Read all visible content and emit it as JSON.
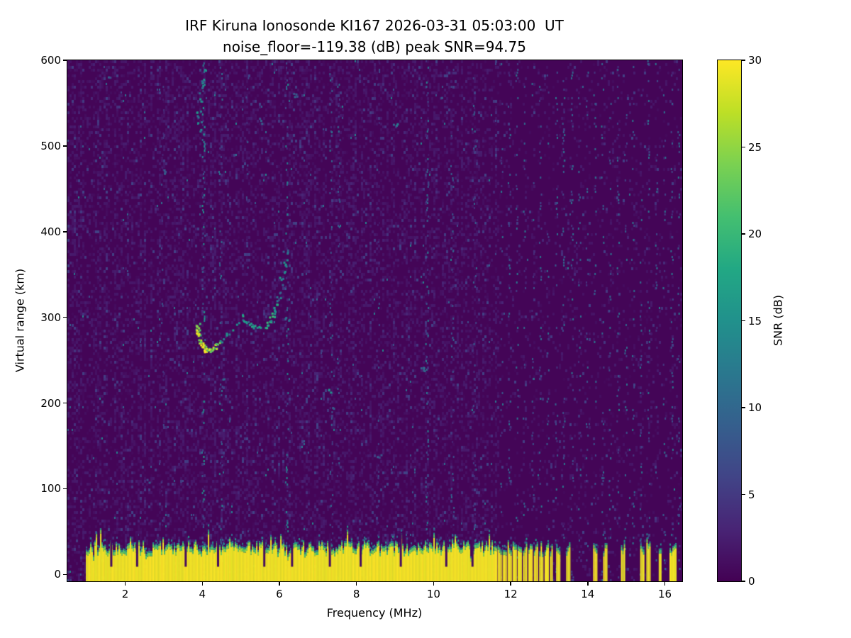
{
  "title": {
    "line1": "IRF Kiruna Ionosonde KI167 2026-03-31 05:03:00  UT",
    "line2": "noise_floor=-119.38 (dB) peak SNR=94.75"
  },
  "axes": {
    "xlabel": "Frequency (MHz)",
    "ylabel": "Virtual range (km)",
    "x_ticks": [
      2,
      4,
      6,
      8,
      10,
      12,
      14,
      16
    ],
    "y_ticks": [
      0,
      100,
      200,
      300,
      400,
      500,
      600
    ]
  },
  "colorbar": {
    "label": "SNR (dB)",
    "ticks": [
      0,
      5,
      10,
      15,
      20,
      25,
      30
    ],
    "min": 0,
    "max": 30
  },
  "chart_data": {
    "type": "heatmap",
    "station": "IRF Kiruna Ionosonde KI167",
    "timestamp_ut": "2026-03-31 05:03:00",
    "noise_floor_db": -119.38,
    "peak_snr_db": 94.75,
    "x_range": [
      0.5,
      16.45
    ],
    "y_range": [
      -8,
      600
    ],
    "value_range": [
      0,
      30
    ],
    "colormap": "viridis",
    "colormap_stops": [
      [
        0.0,
        "#440154"
      ],
      [
        0.1,
        "#482475"
      ],
      [
        0.2,
        "#414487"
      ],
      [
        0.3,
        "#355f8d"
      ],
      [
        0.4,
        "#2a788e"
      ],
      [
        0.5,
        "#21918c"
      ],
      [
        0.6,
        "#22a884"
      ],
      [
        0.7,
        "#44bf70"
      ],
      [
        0.8,
        "#7ad151"
      ],
      [
        0.9,
        "#bddf26"
      ],
      [
        1.0,
        "#fde725"
      ]
    ],
    "ground_clutter": {
      "x_start": 0.98,
      "x_end": 11.63,
      "top_km_min": 27,
      "top_km_max": 40,
      "bars": [
        [
          11.66,
          11.74
        ],
        [
          11.79,
          11.87
        ],
        [
          11.92,
          12.0
        ],
        [
          12.05,
          12.13
        ],
        [
          12.18,
          12.26
        ],
        [
          12.32,
          12.4
        ],
        [
          12.46,
          12.54
        ],
        [
          12.6,
          12.68
        ],
        [
          12.74,
          12.82
        ],
        [
          12.88,
          12.96
        ],
        [
          13.02,
          13.08
        ],
        [
          13.18,
          13.26
        ],
        [
          13.44,
          13.54
        ],
        [
          14.14,
          14.24
        ],
        [
          14.4,
          14.48
        ],
        [
          14.86,
          14.96
        ],
        [
          15.36,
          15.44
        ],
        [
          15.52,
          15.6
        ],
        [
          15.84,
          15.9
        ],
        [
          16.12,
          16.28
        ]
      ],
      "notches": [
        1.63,
        2.3,
        3.56,
        4.4,
        5.6,
        6.32,
        7.3,
        8.1,
        9.14,
        10.32,
        11.0
      ]
    },
    "echo_traces": [
      {
        "name": "cusp-echo",
        "intensity": 0.85,
        "density": 0.9,
        "size": 3,
        "points": [
          [
            3.88,
            296
          ],
          [
            3.86,
            288
          ],
          [
            3.9,
            279
          ],
          [
            3.97,
            270
          ],
          [
            4.05,
            264
          ],
          [
            4.15,
            262
          ],
          [
            4.25,
            264
          ],
          [
            4.33,
            268
          ],
          [
            4.4,
            272
          ]
        ]
      },
      {
        "name": "cusp-bright-core",
        "intensity": 0.95,
        "density": 0.85,
        "size": 3,
        "points": [
          [
            3.98,
            268
          ],
          [
            4.06,
            263
          ],
          [
            4.16,
            262
          ],
          [
            4.24,
            264
          ]
        ]
      },
      {
        "name": "connecting-faint-trace",
        "intensity": 0.45,
        "density": 0.4,
        "size": 3,
        "points": [
          [
            4.45,
            272
          ],
          [
            4.6,
            280
          ],
          [
            4.75,
            287
          ],
          [
            4.9,
            293
          ],
          [
            5.0,
            298
          ]
        ]
      },
      {
        "name": "f-region-arc",
        "intensity": 0.6,
        "density": 0.75,
        "size": 3,
        "points": [
          [
            5.05,
            302
          ],
          [
            5.15,
            294
          ],
          [
            5.3,
            289
          ],
          [
            5.45,
            288
          ],
          [
            5.6,
            291
          ],
          [
            5.72,
            297
          ],
          [
            5.82,
            305
          ],
          [
            5.92,
            315
          ]
        ]
      },
      {
        "name": "upper-spread",
        "intensity": 0.4,
        "density": 0.35,
        "size": 3,
        "points": [
          [
            5.95,
            318
          ],
          [
            6.05,
            340
          ],
          [
            6.12,
            360
          ],
          [
            6.18,
            380
          ]
        ]
      },
      {
        "name": "second-hop-arc",
        "intensity": 0.45,
        "density": 0.45,
        "size": 3,
        "points": [
          [
            4.03,
            590
          ],
          [
            3.97,
            573
          ],
          [
            3.92,
            556
          ],
          [
            3.89,
            540
          ],
          [
            3.91,
            527
          ],
          [
            3.97,
            517
          ]
        ]
      }
    ],
    "noisy_columns": [
      {
        "f": 4.02,
        "density": 0.35,
        "strength": 0.5
      },
      {
        "f": 4.47,
        "density": 0.2,
        "strength": 0.4
      },
      {
        "f": 6.18,
        "density": 0.3,
        "strength": 0.45
      },
      {
        "f": 7.33,
        "density": 0.22,
        "strength": 0.35
      },
      {
        "f": 7.52,
        "density": 0.18,
        "strength": 0.3
      },
      {
        "f": 9.82,
        "density": 0.3,
        "strength": 0.4
      },
      {
        "f": 10.48,
        "density": 0.2,
        "strength": 0.3
      },
      {
        "f": 11.05,
        "density": 0.18,
        "strength": 0.3
      },
      {
        "f": 2.95,
        "density": 0.12,
        "strength": 0.25
      },
      {
        "f": 5.15,
        "density": 0.12,
        "strength": 0.25
      },
      {
        "f": 8.55,
        "density": 0.12,
        "strength": 0.25
      }
    ],
    "speckle_columns": [
      11.75,
      11.95,
      12.15,
      12.34,
      12.56,
      12.76,
      12.95,
      13.17,
      13.36,
      13.58,
      13.77,
      13.97,
      14.17,
      14.37,
      14.57,
      14.77,
      14.97,
      15.17,
      15.37,
      15.57,
      15.77,
      15.97,
      16.17,
      16.35
    ],
    "scatter_dots": [
      [
        6.05,
        345,
        0.5
      ],
      [
        6.1,
        362,
        0.45
      ],
      [
        6.15,
        378,
        0.4
      ],
      [
        6.2,
        300,
        0.35
      ],
      [
        4.5,
        230,
        0.35
      ],
      [
        7.3,
        215,
        0.45
      ],
      [
        7.35,
        195,
        0.3
      ],
      [
        9.0,
        525,
        0.35
      ],
      [
        8.55,
        140,
        0.3
      ],
      [
        10.15,
        555,
        0.3
      ],
      [
        2.6,
        110,
        0.3
      ],
      [
        1.6,
        580,
        0.3
      ],
      [
        3.05,
        470,
        0.3
      ],
      [
        9.7,
        240,
        0.4
      ],
      [
        5.5,
        530,
        0.3
      ],
      [
        6.4,
        560,
        0.3
      ]
    ]
  }
}
